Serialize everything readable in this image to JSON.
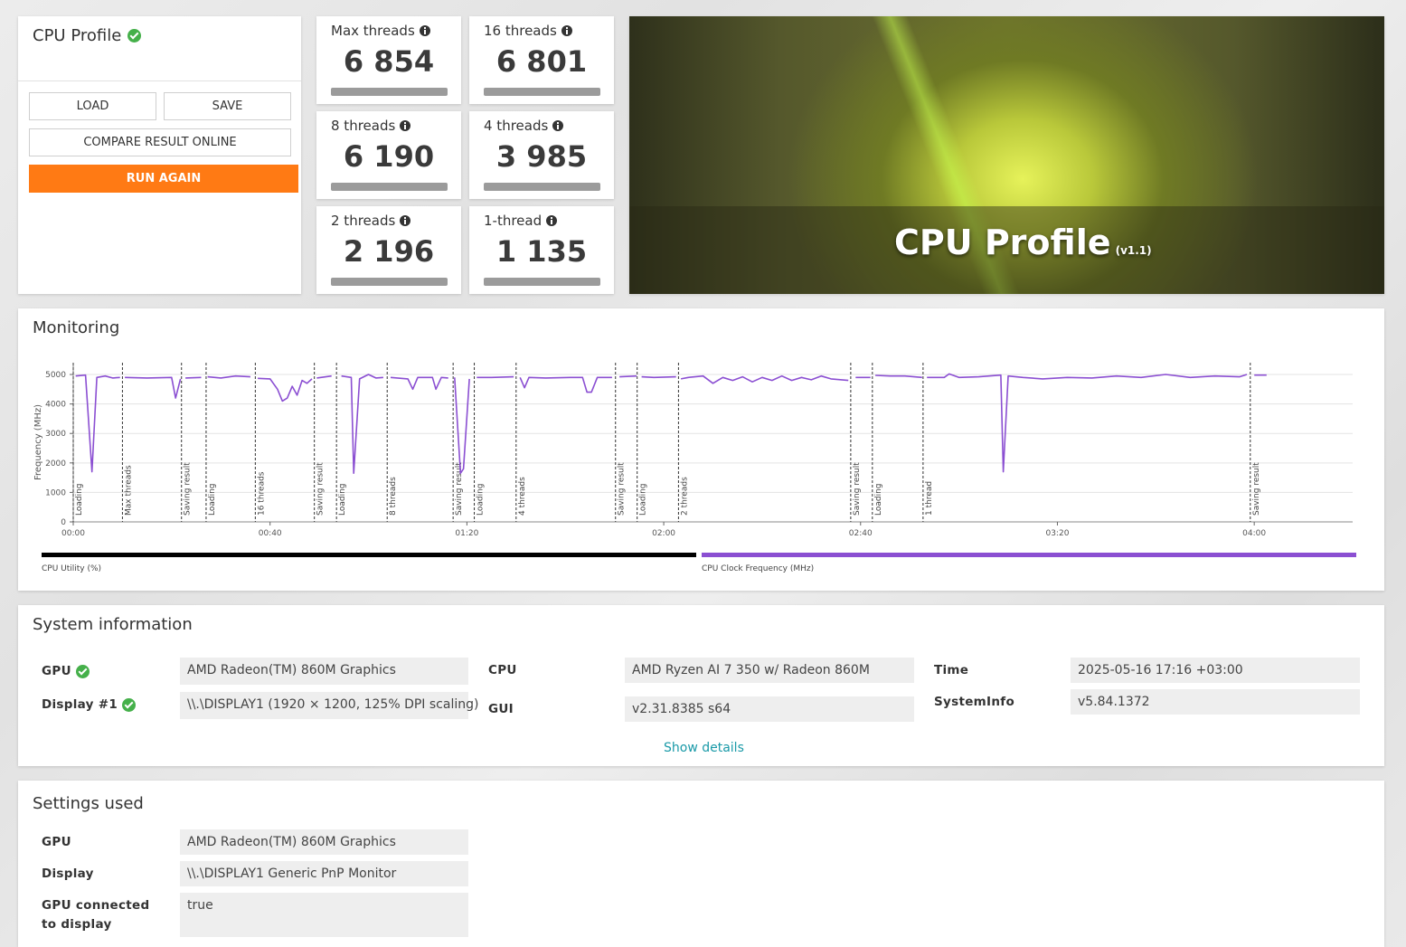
{
  "profile_panel": {
    "title": "CPU Profile",
    "verified": true,
    "buttons": {
      "load": "LOAD",
      "save": "SAVE",
      "compare": "COMPARE RESULT ONLINE",
      "run_again": "RUN AGAIN"
    }
  },
  "scores": [
    {
      "label": "Max threads",
      "score": "6 854"
    },
    {
      "label": "16 threads",
      "score": "6 801"
    },
    {
      "label": "8 threads",
      "score": "6 190"
    },
    {
      "label": "4 threads",
      "score": "3 985"
    },
    {
      "label": "2 threads",
      "score": "2 196"
    },
    {
      "label": "1-thread",
      "score": "1 135"
    }
  ],
  "hero": {
    "title": "CPU Profile",
    "version": "(v1.1)"
  },
  "monitoring": {
    "title": "Monitoring"
  },
  "chart_data": {
    "type": "line",
    "y_label": "Frequency (MHz)",
    "x": [
      0.5,
      2.5,
      3.8,
      4.8,
      6.5,
      8,
      9.5,
      9.8,
      10.5,
      15,
      20,
      20.8,
      21.8,
      22.5,
      22.8,
      26,
      26.6,
      27.3,
      30,
      33,
      36,
      37,
      37.5,
      40,
      41.5,
      42.5,
      43.5,
      44.5,
      45.5,
      46.5,
      47.5,
      48.5,
      48.8,
      49.5,
      52.5,
      53.5,
      54.5,
      56.5,
      57,
      58.2,
      60,
      61.5,
      63,
      63.8,
      64.5,
      68,
      69,
      70,
      73,
      73.7,
      74.8,
      76.2,
      76.8,
      77.5,
      78.7,
      79.3,
      80.5,
      80.8,
      82,
      85,
      89.5,
      90,
      90.8,
      91.7,
      92.6,
      96,
      101,
      103.5,
      104.4,
      105.3,
      106.5,
      109.5,
      110.2,
      111,
      114.5,
      115,
      115.5,
      118,
      122.5,
      123,
      123.5,
      125,
      128,
      130,
      132,
      134,
      136,
      138,
      140,
      142,
      144,
      146,
      148,
      150,
      152,
      154,
      157.5,
      158.3,
      159,
      162,
      162.5,
      163,
      166,
      169,
      172.5,
      173,
      173.5,
      177,
      178,
      180,
      184,
      188.5,
      189,
      190,
      193,
      197,
      202,
      207,
      212,
      217,
      222,
      227,
      232,
      237,
      238.5,
      239.5,
      240,
      242.5
    ],
    "series": [
      {
        "name": "CPU Clock Frequency (MHz)",
        "color": "#8b4fd2",
        "values": [
          4950,
          4980,
          1700,
          4900,
          4950,
          4880,
          4900,
          null,
          4900,
          4880,
          4900,
          4200,
          4850,
          null,
          4880,
          4900,
          null,
          4920,
          4880,
          4950,
          4920,
          null,
          4870,
          4850,
          4500,
          4100,
          4200,
          4600,
          4300,
          4800,
          4700,
          4850,
          null,
          4880,
          4950,
          null,
          4950,
          4900,
          1650,
          4850,
          5000,
          4880,
          4900,
          null,
          4900,
          4850,
          4500,
          4900,
          4900,
          4500,
          4900,
          4880,
          null,
          4900,
          1650,
          1800,
          4850,
          null,
          4900,
          4900,
          4920,
          null,
          4900,
          4550,
          4900,
          4880,
          4900,
          4900,
          4400,
          4400,
          4900,
          4900,
          null,
          4920,
          4950,
          null,
          4920,
          4900,
          4920,
          null,
          4850,
          4900,
          4950,
          4700,
          4900,
          4800,
          4920,
          4750,
          4900,
          4800,
          4950,
          4800,
          4900,
          4820,
          4950,
          4850,
          4800,
          null,
          4900,
          4900,
          null,
          4970,
          4950,
          4950,
          4900,
          null,
          4900,
          4900,
          5020,
          4900,
          4920,
          4980,
          1700,
          4950,
          4900,
          4850,
          4900,
          4880,
          4950,
          4900,
          5000,
          4900,
          4950,
          4920,
          5000,
          null,
          4980,
          4980
        ]
      }
    ],
    "other_legend": [
      {
        "name": "CPU Utility (%)",
        "color": "#000000"
      }
    ],
    "xlim": [
      0,
      260
    ],
    "ylim": [
      0,
      5400
    ],
    "xticks": [
      {
        "value": 0,
        "label": "00:00"
      },
      {
        "value": 40,
        "label": "00:40"
      },
      {
        "value": 80,
        "label": "01:20"
      },
      {
        "value": 120,
        "label": "02:00"
      },
      {
        "value": 160,
        "label": "02:40"
      },
      {
        "value": 200,
        "label": "03:20"
      },
      {
        "value": 240,
        "label": "04:00"
      }
    ],
    "yticks": [
      0,
      1000,
      2000,
      3000,
      4000,
      5000
    ],
    "grid": true,
    "markers": [
      {
        "x": 0,
        "label": "Loading"
      },
      {
        "x": 10,
        "label": "Max threads"
      },
      {
        "x": 22,
        "label": "Saving result"
      },
      {
        "x": 27,
        "label": "Loading"
      },
      {
        "x": 37,
        "label": "16 threads"
      },
      {
        "x": 49,
        "label": "Saving result"
      },
      {
        "x": 53.5,
        "label": "Loading"
      },
      {
        "x": 63.8,
        "label": "8 threads"
      },
      {
        "x": 77.2,
        "label": "Saving result"
      },
      {
        "x": 81.5,
        "label": "Loading"
      },
      {
        "x": 90,
        "label": "4 threads"
      },
      {
        "x": 110.2,
        "label": "Saving result"
      },
      {
        "x": 114.6,
        "label": "Loading"
      },
      {
        "x": 123,
        "label": "2 threads"
      },
      {
        "x": 158,
        "label": "Saving result"
      },
      {
        "x": 162.4,
        "label": "Loading"
      },
      {
        "x": 172.7,
        "label": "1 thread"
      },
      {
        "x": 239.2,
        "label": "Saving result"
      }
    ]
  },
  "system_information": {
    "title": "System information",
    "fields": [
      {
        "label": "GPU",
        "value": "AMD Radeon(TM) 860M Graphics",
        "verified": true
      },
      {
        "label": "Display #1",
        "value": "\\\\.\\DISPLAY1 (1920 × 1200, 125% DPI scaling)",
        "verified": true
      },
      {
        "label": "CPU",
        "value": "AMD Ryzen AI 7 350 w/ Radeon 860M"
      },
      {
        "label": "GUI",
        "value": "v2.31.8385 s64"
      },
      {
        "label": "Time",
        "value": "2025-05-16 17:16 +03:00"
      },
      {
        "label": "SystemInfo",
        "value": "v5.84.1372"
      }
    ],
    "show_details": "Show details"
  },
  "settings_used": {
    "title": "Settings used",
    "fields": [
      {
        "label": "GPU",
        "value": "AMD Radeon(TM) 860M Graphics"
      },
      {
        "label": "Display",
        "value": "\\\\.\\DISPLAY1 Generic PnP Monitor"
      },
      {
        "label": "GPU connected to display",
        "value": "true"
      }
    ]
  }
}
